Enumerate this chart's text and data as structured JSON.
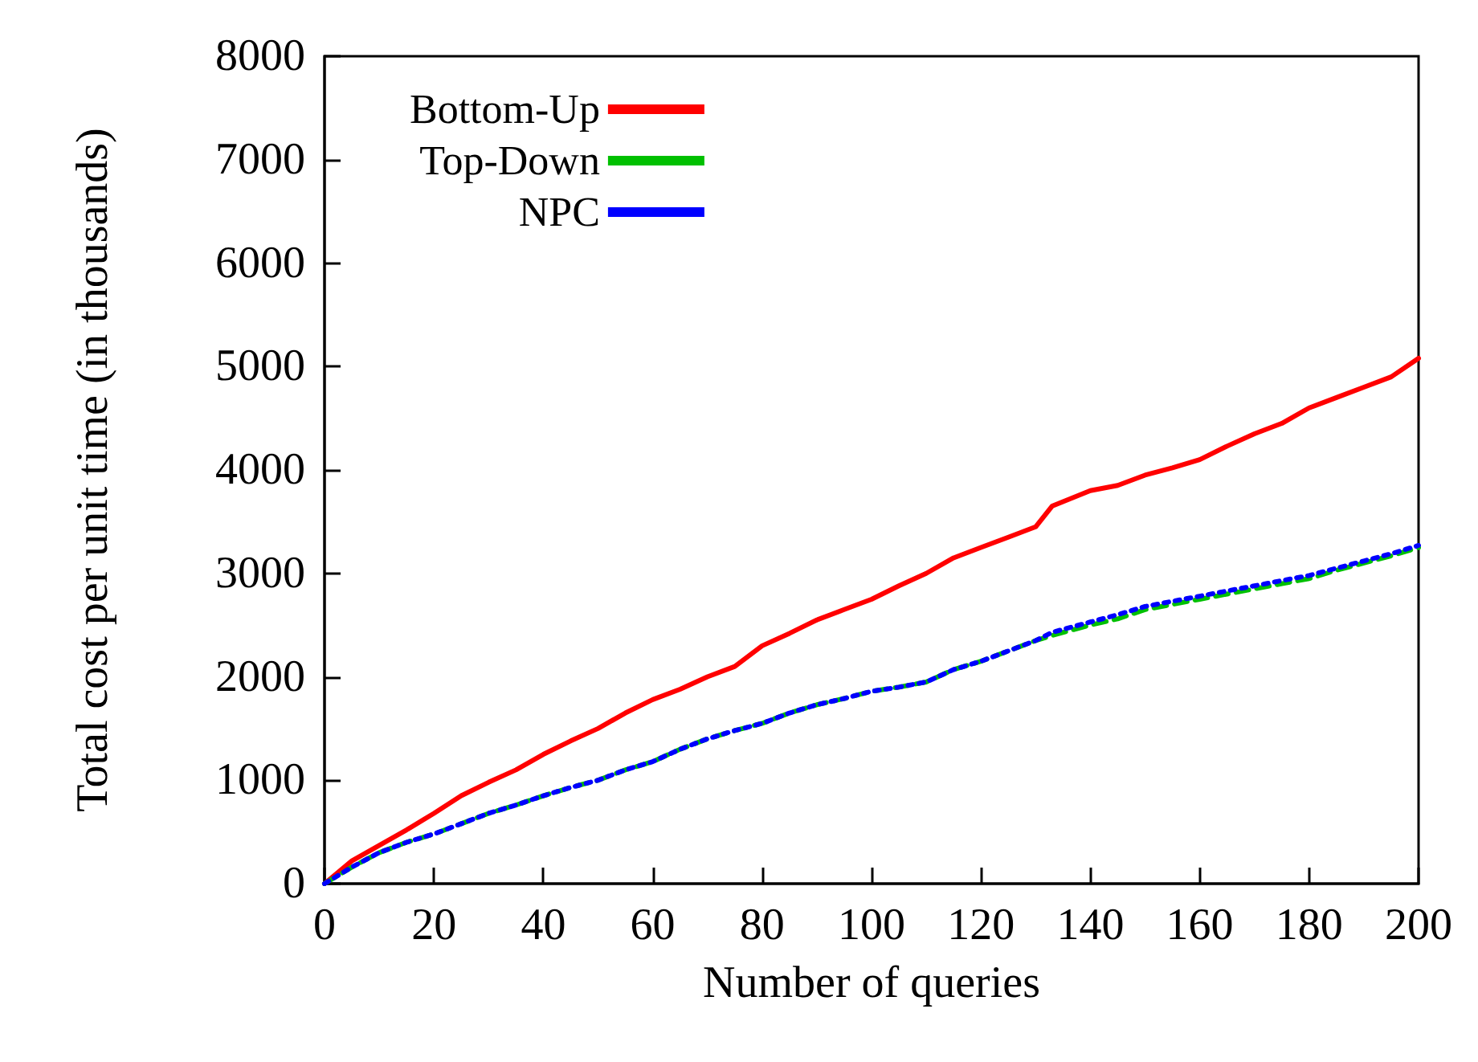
{
  "chart_data": {
    "type": "line",
    "xlabel": "Number of queries",
    "ylabel": "Total cost per unit time (in thousands)",
    "x": [
      0,
      5,
      10,
      15,
      20,
      25,
      30,
      35,
      40,
      45,
      50,
      55,
      60,
      65,
      70,
      75,
      80,
      85,
      90,
      95,
      100,
      105,
      110,
      115,
      120,
      125,
      130,
      133,
      140,
      145,
      150,
      155,
      160,
      165,
      170,
      175,
      180,
      185,
      190,
      195,
      200
    ],
    "series": [
      {
        "name": "Bottom-Up",
        "color": "#ff0000",
        "line_style": "solid",
        "values": [
          0,
          220,
          370,
          520,
          680,
          850,
          980,
          1100,
          1250,
          1380,
          1500,
          1650,
          1780,
          1880,
          2000,
          2100,
          2300,
          2420,
          2550,
          2650,
          2750,
          2880,
          3000,
          3150,
          3250,
          3350,
          3450,
          3650,
          3800,
          3850,
          3950,
          4020,
          4100,
          4230,
          4350,
          4450,
          4600,
          4700,
          4800,
          4900,
          5080
        ]
      },
      {
        "name": "Top-Down",
        "color": "#00c000",
        "line_style": "dashed",
        "values": [
          0,
          160,
          300,
          400,
          480,
          580,
          680,
          760,
          850,
          930,
          1000,
          1100,
          1180,
          1300,
          1400,
          1480,
          1550,
          1650,
          1730,
          1790,
          1860,
          1900,
          1950,
          2070,
          2150,
          2250,
          2350,
          2400,
          2500,
          2560,
          2650,
          2700,
          2750,
          2800,
          2850,
          2900,
          2950,
          3030,
          3100,
          3170,
          3250
        ]
      },
      {
        "name": "NPC",
        "color": "#0000ff",
        "line_style": "dotted",
        "values": [
          0,
          160,
          300,
          400,
          480,
          580,
          680,
          760,
          850,
          930,
          1000,
          1100,
          1180,
          1300,
          1400,
          1480,
          1550,
          1650,
          1730,
          1790,
          1860,
          1900,
          1950,
          2070,
          2150,
          2250,
          2350,
          2430,
          2530,
          2600,
          2680,
          2730,
          2780,
          2830,
          2880,
          2930,
          2980,
          3050,
          3120,
          3190,
          3270
        ]
      }
    ],
    "xlim": [
      0,
      200
    ],
    "xticks": [
      0,
      20,
      40,
      60,
      80,
      100,
      120,
      140,
      160,
      180,
      200
    ],
    "ylim": [
      0,
      8000
    ],
    "yticks": [
      0,
      1000,
      2000,
      3000,
      4000,
      5000,
      6000,
      7000,
      8000
    ],
    "legend": "top left",
    "grid": false,
    "marker": "none"
  }
}
